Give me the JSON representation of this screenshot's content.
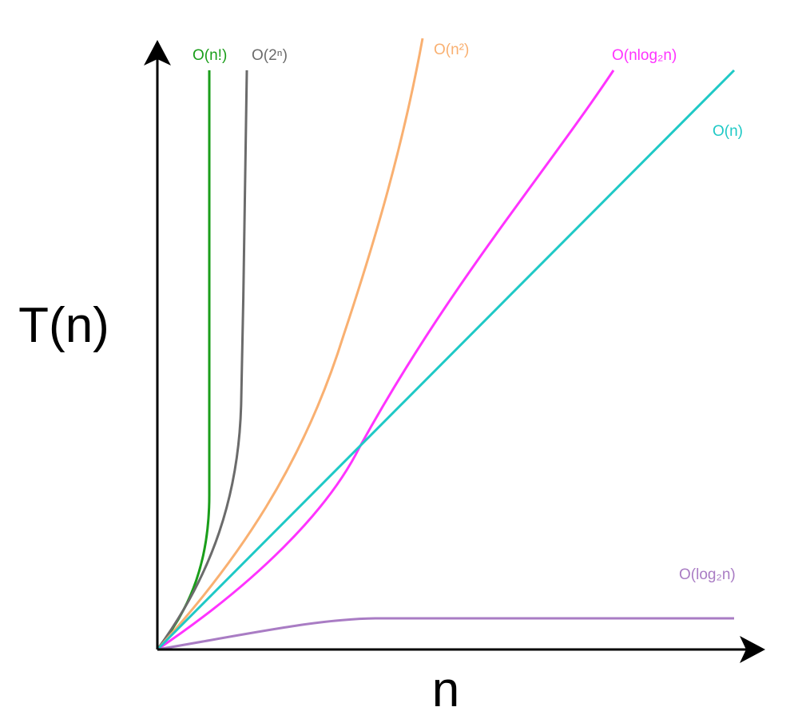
{
  "diagram": {
    "axes": {
      "y_label": "T(n)",
      "x_label": "n"
    },
    "colors": {
      "axis": "#000000"
    },
    "curves": [
      {
        "id": "factorial",
        "label": "O(n!)",
        "color": "#1a9e1a"
      },
      {
        "id": "exponential",
        "label": "O(2ⁿ)",
        "color": "#6b6b6b"
      },
      {
        "id": "quadratic",
        "label": "O(n²)",
        "color": "#f9b071"
      },
      {
        "id": "nlogn",
        "label": "O(nlog₂n)",
        "color": "#ff33ff"
      },
      {
        "id": "linear",
        "label": "O(n)",
        "color": "#1fc9c6"
      },
      {
        "id": "log",
        "label": "O(log₂n)",
        "color": "#a97cc4"
      }
    ]
  }
}
